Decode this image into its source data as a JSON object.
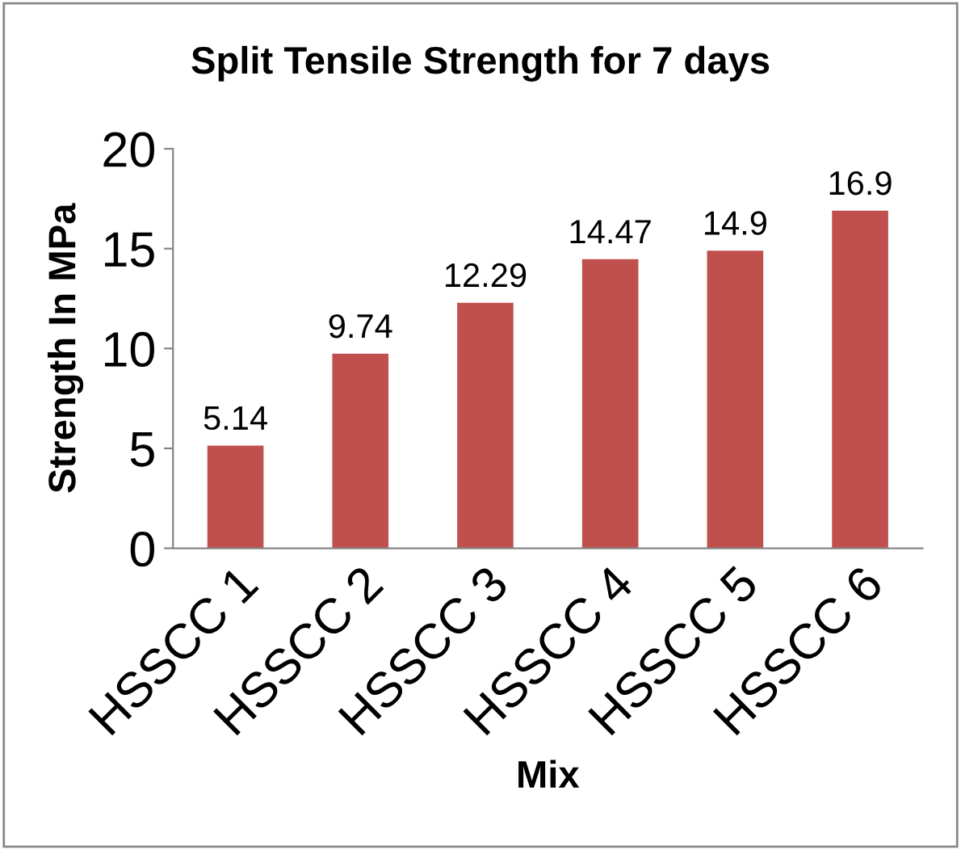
{
  "chart_data": {
    "type": "bar",
    "title": "Split Tensile Strength for 7 days",
    "xlabel": "Mix",
    "ylabel": "Strength In MPa",
    "categories": [
      "HSSCC 1",
      "HSSCC 2",
      "HSSCC 3",
      "HSSCC 4",
      "HSSCC 5",
      "HSSCC 6"
    ],
    "values": [
      5.14,
      9.74,
      12.29,
      14.47,
      14.9,
      16.9
    ],
    "color": "#c0504d",
    "ylim": [
      0,
      20
    ],
    "yticks": [
      0,
      5,
      10,
      15,
      20
    ],
    "data_labels": true,
    "grid": false,
    "legend": false
  }
}
